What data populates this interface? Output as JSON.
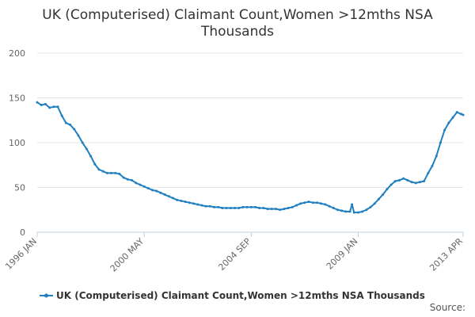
{
  "chart_data": {
    "type": "line",
    "title_lines": [
      "UK (Computerised) Claimant Count,Women >12mths NSA",
      "Thousands"
    ],
    "x_tick_labels": [
      "1996 JAN",
      "2000 MAY",
      "2004 SEP",
      "2009 JAN",
      "2013 APR"
    ],
    "y_ticks": [
      0,
      50,
      100,
      150,
      200
    ],
    "ylim": [
      0,
      200
    ],
    "xlim": [
      "1996-01",
      "2013-04"
    ],
    "grid": "horizontal",
    "legend_position": "bottom",
    "series": [
      {
        "name": "UK (Computerised) Claimant Count,Women >12mths NSA Thousands",
        "color": "#1f7fc0",
        "x": [
          "1996-01",
          "1996-03",
          "1996-05",
          "1996-07",
          "1996-09",
          "1996-11",
          "1997-01",
          "1997-03",
          "1997-05",
          "1997-07",
          "1997-09",
          "1997-11",
          "1998-01",
          "1998-03",
          "1998-05",
          "1998-07",
          "1998-09",
          "1998-11",
          "1999-01",
          "1999-03",
          "1999-05",
          "1999-07",
          "1999-09",
          "1999-11",
          "2000-01",
          "2000-03",
          "2000-05",
          "2000-07",
          "2000-09",
          "2000-11",
          "2001-01",
          "2001-03",
          "2001-05",
          "2001-07",
          "2001-09",
          "2001-11",
          "2002-01",
          "2002-03",
          "2002-05",
          "2002-07",
          "2002-09",
          "2002-11",
          "2003-01",
          "2003-03",
          "2003-05",
          "2003-07",
          "2003-09",
          "2003-11",
          "2004-01",
          "2004-03",
          "2004-05",
          "2004-07",
          "2004-09",
          "2004-11",
          "2005-01",
          "2005-03",
          "2005-05",
          "2005-07",
          "2005-09",
          "2005-11",
          "2006-01",
          "2006-03",
          "2006-05",
          "2006-07",
          "2006-09",
          "2006-11",
          "2007-01",
          "2007-03",
          "2007-05",
          "2007-07",
          "2007-09",
          "2007-11",
          "2008-01",
          "2008-03",
          "2008-05",
          "2008-07",
          "2008-09",
          "2008-10",
          "2008-11",
          "2009-01",
          "2009-03",
          "2009-05",
          "2009-07",
          "2009-09",
          "2009-11",
          "2010-01",
          "2010-03",
          "2010-05",
          "2010-07",
          "2010-09",
          "2010-11",
          "2011-01",
          "2011-03",
          "2011-05",
          "2011-07",
          "2011-09",
          "2011-11",
          "2012-01",
          "2012-03",
          "2012-05",
          "2012-07",
          "2012-09",
          "2012-11",
          "2013-01",
          "2013-03",
          "2013-04"
        ],
        "values": [
          145,
          142,
          143,
          139,
          140,
          140,
          130,
          122,
          120,
          115,
          108,
          100,
          93,
          85,
          76,
          70,
          68,
          66,
          66,
          66,
          65,
          61,
          59,
          58,
          55,
          53,
          51,
          49,
          47,
          46,
          44,
          42,
          40,
          38,
          36,
          35,
          34,
          33,
          32,
          31,
          30,
          29,
          29,
          28,
          28,
          27,
          27,
          27,
          27,
          27,
          28,
          28,
          28,
          28,
          27,
          27,
          26,
          26,
          26,
          25,
          26,
          27,
          28,
          30,
          32,
          33,
          34,
          33,
          33,
          32,
          31,
          29,
          27,
          25,
          24,
          23,
          23,
          31,
          22,
          22,
          23,
          25,
          28,
          32,
          37,
          42,
          48,
          53,
          57,
          58,
          60,
          58,
          56,
          55,
          56,
          57,
          66,
          74,
          85,
          100,
          114,
          122,
          128,
          134,
          132,
          131
        ]
      }
    ]
  },
  "source_label": "Source:"
}
